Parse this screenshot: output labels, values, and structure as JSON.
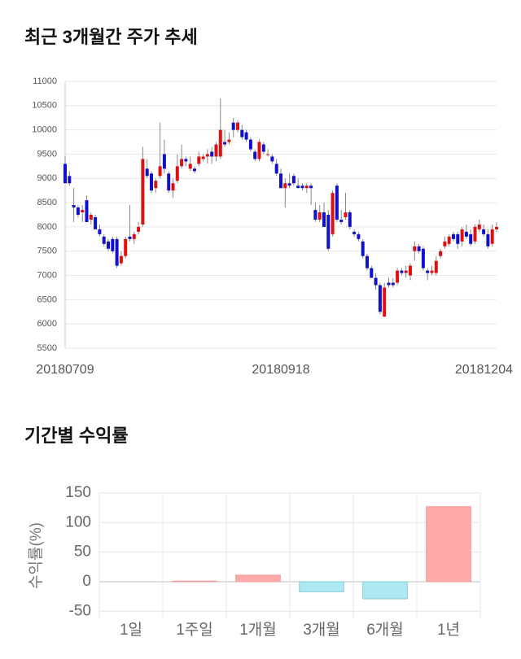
{
  "chart_data": [
    {
      "type": "candlestick",
      "title": "최근 3개월간 주가 추세",
      "up_color": "#dd1111",
      "down_color": "#1111cc",
      "wick_color": "#888888",
      "ylim": [
        5500,
        11000
      ],
      "yticks": [
        5500,
        6000,
        6500,
        7000,
        7500,
        8000,
        8500,
        9000,
        9500,
        10000,
        10500,
        11000
      ],
      "categories": [
        "20180709",
        null,
        null,
        null,
        null,
        null,
        null,
        null,
        null,
        null,
        null,
        null,
        null,
        null,
        null,
        null,
        null,
        null,
        null,
        null,
        null,
        null,
        null,
        null,
        null,
        null,
        null,
        null,
        null,
        null,
        null,
        null,
        null,
        null,
        null,
        null,
        null,
        null,
        null,
        null,
        null,
        null,
        null,
        null,
        null,
        null,
        null,
        null,
        null,
        null,
        "20180918",
        null,
        null,
        null,
        null,
        null,
        null,
        null,
        null,
        null,
        null,
        null,
        null,
        null,
        null,
        null,
        null,
        null,
        null,
        null,
        null,
        null,
        null,
        null,
        null,
        null,
        null,
        null,
        null,
        null,
        null,
        null,
        null,
        null,
        null,
        null,
        null,
        null,
        null,
        null,
        null,
        null,
        null,
        null,
        null,
        null,
        null,
        null,
        null,
        null,
        "20181204"
      ],
      "ohlc": [
        [
          9300,
          9450,
          8900,
          8900
        ],
        [
          9050,
          9150,
          8850,
          8900
        ],
        [
          8450,
          8800,
          8100,
          8400
        ],
        [
          8400,
          8450,
          8200,
          8250
        ],
        [
          8300,
          8450,
          8100,
          8350
        ],
        [
          8550,
          8650,
          8100,
          8100
        ],
        [
          8150,
          8300,
          8050,
          8250
        ],
        [
          8200,
          8250,
          7950,
          7950
        ],
        [
          7950,
          8050,
          7800,
          7850
        ],
        [
          7800,
          7850,
          7600,
          7650
        ],
        [
          7700,
          7750,
          7500,
          7550
        ],
        [
          7750,
          7800,
          7450,
          7500
        ],
        [
          7750,
          7800,
          7150,
          7200
        ],
        [
          7250,
          7500,
          7200,
          7400
        ],
        [
          7400,
          7800,
          7350,
          7750
        ],
        [
          7800,
          8450,
          7700,
          7750
        ],
        [
          7750,
          7900,
          7650,
          7850
        ],
        [
          7900,
          8100,
          7850,
          8000
        ],
        [
          8050,
          9650,
          8000,
          9400
        ],
        [
          9200,
          9400,
          9000,
          9050
        ],
        [
          9100,
          9150,
          8700,
          8750
        ],
        [
          8800,
          9000,
          8700,
          8950
        ],
        [
          9050,
          10150,
          9000,
          9250
        ],
        [
          9500,
          9800,
          9100,
          9200
        ],
        [
          9100,
          9150,
          8700,
          8750
        ],
        [
          8750,
          9000,
          8600,
          8900
        ],
        [
          8950,
          9500,
          8900,
          9250
        ],
        [
          9250,
          9700,
          9200,
          9400
        ],
        [
          9400,
          9450,
          9250,
          9350
        ],
        [
          9200,
          9450,
          9150,
          9300
        ],
        [
          9200,
          9250,
          9100,
          9150
        ],
        [
          9300,
          9550,
          9250,
          9450
        ],
        [
          9400,
          9500,
          9350,
          9450
        ],
        [
          9450,
          9600,
          9300,
          9500
        ],
        [
          9550,
          9650,
          9300,
          9450
        ],
        [
          9450,
          9750,
          9350,
          9700
        ],
        [
          9450,
          10650,
          9400,
          10000
        ],
        [
          9750,
          10000,
          9650,
          9700
        ],
        [
          9750,
          9950,
          9700,
          9800
        ],
        [
          10150,
          10250,
          9850,
          10000
        ],
        [
          10000,
          10200,
          9950,
          10150
        ],
        [
          10000,
          10100,
          9800,
          9850
        ],
        [
          9950,
          10000,
          9750,
          9800
        ],
        [
          9800,
          9850,
          9550,
          9600
        ],
        [
          9550,
          9600,
          9350,
          9400
        ],
        [
          9400,
          9800,
          9350,
          9750
        ],
        [
          9700,
          9750,
          9500,
          9550
        ],
        [
          9500,
          9600,
          9450,
          9500
        ],
        [
          9450,
          9500,
          9300,
          9350
        ],
        [
          9300,
          9400,
          9050,
          9100
        ],
        [
          9100,
          9200,
          8800,
          8800
        ],
        [
          8800,
          9000,
          8400,
          8900
        ],
        [
          8900,
          9100,
          8800,
          8850
        ],
        [
          9050,
          9100,
          8850,
          8900
        ],
        [
          8850,
          9000,
          8800,
          8800
        ],
        [
          8850,
          8900,
          8750,
          8800
        ],
        [
          8800,
          8900,
          8700,
          8850
        ],
        [
          8850,
          8900,
          8450,
          8800
        ],
        [
          8350,
          8500,
          8100,
          8150
        ],
        [
          8150,
          8450,
          8100,
          8300
        ],
        [
          8300,
          8500,
          8000,
          8000
        ],
        [
          8250,
          8350,
          7500,
          7550
        ],
        [
          7850,
          8750,
          7800,
          8700
        ],
        [
          8850,
          8900,
          8100,
          8150
        ],
        [
          8150,
          8350,
          8050,
          8100
        ],
        [
          8200,
          8700,
          8150,
          8300
        ],
        [
          8300,
          8350,
          7950,
          8000
        ],
        [
          7900,
          7950,
          7800,
          7850
        ],
        [
          7850,
          7900,
          7700,
          7750
        ],
        [
          7700,
          7750,
          7350,
          7400
        ],
        [
          7400,
          7450,
          7100,
          7150
        ],
        [
          7150,
          7200,
          6950,
          6950
        ],
        [
          6950,
          7050,
          6700,
          6800
        ],
        [
          6800,
          6850,
          6200,
          6250
        ],
        [
          6150,
          6850,
          6150,
          6750
        ],
        [
          6850,
          6950,
          6750,
          6800
        ],
        [
          6850,
          6950,
          6750,
          6800
        ],
        [
          6850,
          7150,
          6800,
          7100
        ],
        [
          7100,
          7150,
          7000,
          7050
        ],
        [
          7050,
          7200,
          6950,
          7100
        ],
        [
          7000,
          7250,
          6900,
          7200
        ],
        [
          7500,
          7700,
          7300,
          7600
        ],
        [
          7600,
          7650,
          7450,
          7500
        ],
        [
          7550,
          7600,
          7100,
          7150
        ],
        [
          7100,
          7150,
          6900,
          7050
        ],
        [
          7050,
          7200,
          7000,
          7100
        ],
        [
          7050,
          7400,
          7000,
          7300
        ],
        [
          7400,
          7550,
          7350,
          7500
        ],
        [
          7600,
          7800,
          7550,
          7700
        ],
        [
          7650,
          7850,
          7600,
          7800
        ],
        [
          7850,
          7900,
          7700,
          7750
        ],
        [
          7850,
          7900,
          7550,
          7650
        ],
        [
          7700,
          8000,
          7600,
          7950
        ],
        [
          7900,
          8050,
          7750,
          7800
        ],
        [
          7850,
          7950,
          7600,
          7650
        ],
        [
          7700,
          8050,
          7650,
          8000
        ],
        [
          7950,
          8150,
          7900,
          8050
        ],
        [
          7950,
          8050,
          7800,
          7850
        ],
        [
          7850,
          7950,
          7550,
          7600
        ],
        [
          7650,
          8050,
          7600,
          7950
        ],
        [
          7950,
          8100,
          7900,
          8000
        ]
      ]
    },
    {
      "type": "bar",
      "title": "기간별 수익률",
      "ylabel": "수익률(%)",
      "pos_color": "#ffaaaa",
      "neg_color": "#aee8f5",
      "categories": [
        "1일",
        "1주일",
        "1개월",
        "3개월",
        "6개월",
        "1년"
      ],
      "values": [
        0,
        1,
        11,
        -17,
        -29,
        127
      ],
      "ylim": [
        -62,
        150
      ],
      "yticks": [
        -50,
        0,
        50,
        100,
        150
      ]
    }
  ]
}
